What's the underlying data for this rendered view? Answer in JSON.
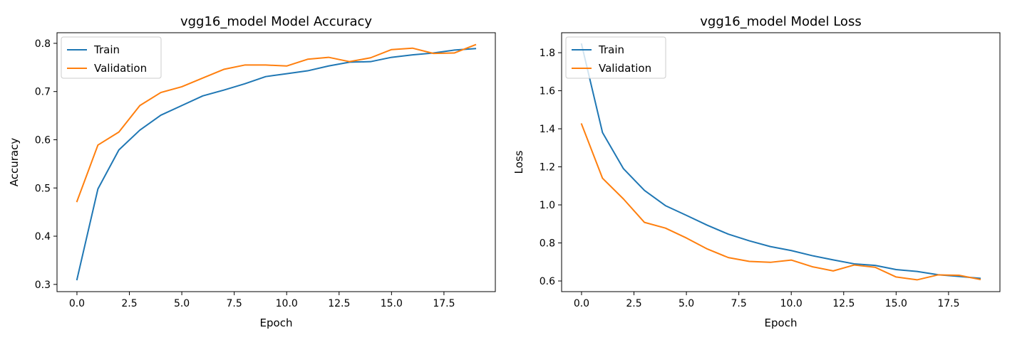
{
  "chart_data": [
    {
      "type": "line",
      "title": "vgg16_model Model Accuracy",
      "xlabel": "Epoch",
      "ylabel": "Accuracy",
      "xlim": [
        -0.95,
        19.95
      ],
      "ylim": [
        0.285,
        0.822
      ],
      "xticks": [
        "0.0",
        "2.5",
        "5.0",
        "7.5",
        "10.0",
        "12.5",
        "15.0",
        "17.5"
      ],
      "xtick_values": [
        0,
        2.5,
        5,
        7.5,
        10,
        12.5,
        15,
        17.5
      ],
      "yticks": [
        "0.3",
        "0.4",
        "0.5",
        "0.6",
        "0.7",
        "0.8"
      ],
      "ytick_values": [
        0.3,
        0.4,
        0.5,
        0.6,
        0.7,
        0.8
      ],
      "grid": false,
      "legend": "upper left",
      "x": [
        0,
        1,
        2,
        3,
        4,
        5,
        6,
        7,
        8,
        9,
        10,
        11,
        12,
        13,
        14,
        15,
        16,
        17,
        18,
        19
      ],
      "series": [
        {
          "name": "Train",
          "color": "#1f77b4",
          "values": [
            0.31,
            0.498,
            0.579,
            0.62,
            0.651,
            0.671,
            0.691,
            0.703,
            0.716,
            0.731,
            0.737,
            0.743,
            0.753,
            0.761,
            0.762,
            0.771,
            0.776,
            0.78,
            0.786,
            0.789
          ]
        },
        {
          "name": "Validation",
          "color": "#ff7f0e",
          "values": [
            0.472,
            0.589,
            0.616,
            0.671,
            0.698,
            0.71,
            0.728,
            0.746,
            0.755,
            0.755,
            0.753,
            0.767,
            0.771,
            0.762,
            0.77,
            0.787,
            0.79,
            0.779,
            0.78,
            0.797
          ]
        }
      ]
    },
    {
      "type": "line",
      "title": "vgg16_model Model Loss",
      "xlabel": "Epoch",
      "ylabel": "Loss",
      "xlim": [
        -0.95,
        19.95
      ],
      "ylim": [
        0.544,
        1.905
      ],
      "xticks": [
        "0.0",
        "2.5",
        "5.0",
        "7.5",
        "10.0",
        "12.5",
        "15.0",
        "17.5"
      ],
      "xtick_values": [
        0,
        2.5,
        5,
        7.5,
        10,
        12.5,
        15,
        17.5
      ],
      "yticks": [
        "0.6",
        "0.8",
        "1.0",
        "1.2",
        "1.4",
        "1.6",
        "1.8"
      ],
      "ytick_values": [
        0.6,
        0.8,
        1.0,
        1.2,
        1.4,
        1.6,
        1.8
      ],
      "grid": false,
      "legend": "upper left",
      "x": [
        0,
        1,
        2,
        3,
        4,
        5,
        6,
        7,
        8,
        9,
        10,
        11,
        12,
        13,
        14,
        15,
        16,
        17,
        18,
        19
      ],
      "series": [
        {
          "name": "Train",
          "color": "#1f77b4",
          "values": [
            1.845,
            1.38,
            1.19,
            1.076,
            0.996,
            0.945,
            0.893,
            0.846,
            0.811,
            0.781,
            0.76,
            0.733,
            0.711,
            0.69,
            0.682,
            0.66,
            0.65,
            0.633,
            0.624,
            0.614
          ]
        },
        {
          "name": "Validation",
          "color": "#ff7f0e",
          "values": [
            1.425,
            1.14,
            1.031,
            0.908,
            0.878,
            0.826,
            0.768,
            0.723,
            0.703,
            0.698,
            0.71,
            0.675,
            0.653,
            0.684,
            0.672,
            0.621,
            0.606,
            0.632,
            0.63,
            0.608
          ]
        }
      ]
    }
  ]
}
